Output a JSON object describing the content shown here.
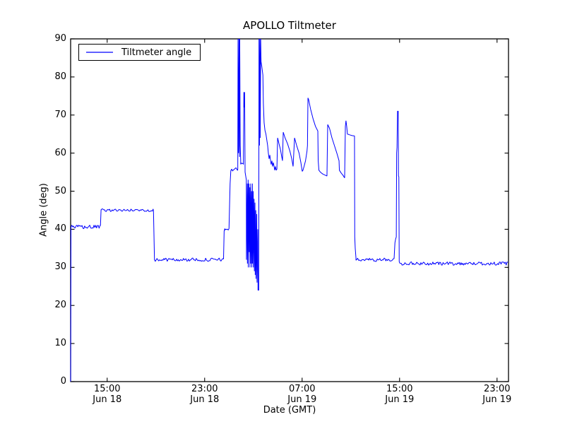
{
  "figure": {
    "background": "#ffffff",
    "frame_color": "#000000"
  },
  "chart_data": {
    "type": "line",
    "title": "APOLLO Tiltmeter",
    "xlabel": "Date (GMT)",
    "ylabel": "Angle (deg)",
    "legend": {
      "position": "upper left",
      "entries": [
        "Tiltmeter angle"
      ]
    },
    "grid": false,
    "x_axis": {
      "label": "Date (GMT)",
      "range_hours": [
        0,
        35.94
      ],
      "origin_tick": "Jun 18 12:00",
      "ticks": [
        {
          "h": 3,
          "line1": "15:00",
          "line2": "Jun 18"
        },
        {
          "h": 11,
          "line1": "23:00",
          "line2": "Jun 18"
        },
        {
          "h": 19,
          "line1": "07:00",
          "line2": "Jun 19"
        },
        {
          "h": 27,
          "line1": "15:00",
          "line2": "Jun 19"
        },
        {
          "h": 35,
          "line1": "23:00",
          "line2": "Jun 19"
        }
      ]
    },
    "y_axis": {
      "label": "Angle (deg)",
      "range": [
        0,
        90
      ],
      "ticks": [
        0,
        10,
        20,
        30,
        40,
        50,
        60,
        70,
        80,
        90
      ]
    },
    "series": [
      {
        "name": "Tiltmeter angle",
        "color": "#0000ff",
        "units": "deg",
        "x_units": "hours since Jun 18 12:00 GMT",
        "segments": [
          {
            "pts": [
              [
                0,
                0
              ],
              [
                0.03,
                40.5
              ]
            ]
          },
          {
            "noise": {
              "t0": 0.03,
              "t1": 2.45,
              "level": 40.6,
              "amp": 0.5
            }
          },
          {
            "pts": [
              [
                2.45,
                41
              ],
              [
                2.5,
                45.2
              ]
            ]
          },
          {
            "noise": {
              "t0": 2.5,
              "t1": 6.8,
              "level": 45,
              "amp": 0.35
            }
          },
          {
            "pts": [
              [
                6.8,
                44.8
              ],
              [
                6.88,
                32.3
              ]
            ]
          },
          {
            "noise": {
              "t0": 6.88,
              "t1": 12.55,
              "level": 32,
              "amp": 0.45
            }
          },
          {
            "pts": [
              [
                12.55,
                32.2
              ],
              [
                12.6,
                39.5
              ],
              [
                12.66,
                40.2
              ]
            ]
          },
          {
            "noise": {
              "t0": 12.66,
              "t1": 13.0,
              "level": 40,
              "amp": 0.35
            }
          },
          {
            "pts": [
              [
                13.0,
                40.2
              ],
              [
                13.05,
                47
              ],
              [
                13.09,
                52
              ],
              [
                13.15,
                55.5
              ]
            ]
          },
          {
            "noise": {
              "t0": 13.15,
              "t1": 13.72,
              "level": 55.6,
              "amp": 0.6
            }
          },
          {
            "pts": [
              [
                13.72,
                56
              ],
              [
                13.74,
                90
              ],
              [
                13.78,
                60
              ],
              [
                13.82,
                90
              ],
              [
                13.86,
                59
              ],
              [
                13.88,
                90
              ],
              [
                13.92,
                62
              ],
              [
                13.96,
                58
              ]
            ]
          },
          {
            "noise": {
              "t0": 13.96,
              "t1": 14.18,
              "level": 57.5,
              "amp": 0.5
            }
          },
          {
            "pts": [
              [
                14.18,
                57
              ],
              [
                14.22,
                76
              ],
              [
                14.25,
                72
              ],
              [
                14.28,
                76
              ],
              [
                14.32,
                55
              ]
            ]
          },
          {
            "pts": [
              [
                14.42,
                53
              ],
              [
                14.43,
                32
              ],
              [
                14.5,
                52
              ],
              [
                14.51,
                31
              ],
              [
                14.57,
                53
              ],
              [
                14.58,
                30
              ],
              [
                14.64,
                52
              ],
              [
                14.66,
                34
              ],
              [
                14.71,
                51
              ],
              [
                14.72,
                30
              ],
              [
                14.78,
                52
              ],
              [
                14.79,
                31
              ],
              [
                14.85,
                50
              ],
              [
                14.86,
                30
              ],
              [
                14.92,
                52
              ],
              [
                14.93,
                31
              ],
              [
                14.99,
                50
              ],
              [
                15.0,
                30
              ],
              [
                15.06,
                48
              ],
              [
                15.08,
                29
              ],
              [
                15.13,
                47
              ],
              [
                15.15,
                28
              ],
              [
                15.2,
                45
              ],
              [
                15.22,
                27
              ],
              [
                15.28,
                44
              ],
              [
                15.3,
                26
              ],
              [
                15.36,
                40
              ],
              [
                15.38,
                24
              ]
            ]
          },
          {
            "pts": [
              [
                15.44,
                24
              ],
              [
                15.46,
                90
              ],
              [
                15.5,
                62
              ],
              [
                15.53,
                90
              ],
              [
                15.56,
                64
              ],
              [
                15.6,
                90
              ],
              [
                15.63,
                84
              ],
              [
                15.68,
                83
              ],
              [
                15.72,
                82
              ],
              [
                15.78,
                80.5
              ],
              [
                15.82,
                73
              ],
              [
                15.88,
                68
              ],
              [
                15.95,
                66
              ],
              [
                16.03,
                65
              ]
            ]
          },
          {
            "pts": [
              [
                16.1,
                63.5
              ],
              [
                16.17,
                62
              ],
              [
                16.23,
                60
              ],
              [
                16.29,
                58.5
              ],
              [
                16.35,
                59.5
              ],
              [
                16.41,
                58
              ],
              [
                16.46,
                57
              ],
              [
                16.52,
                58
              ],
              [
                16.58,
                56.5
              ],
              [
                16.64,
                57.5
              ],
              [
                16.7,
                56.5
              ],
              [
                16.75,
                55.5
              ],
              [
                16.81,
                56.5
              ],
              [
                16.87,
                55.5
              ],
              [
                16.93,
                55.8
              ]
            ]
          },
          {
            "pts": [
              [
                16.99,
                64
              ],
              [
                17.1,
                62.5
              ],
              [
                17.22,
                61
              ],
              [
                17.33,
                59
              ],
              [
                17.39,
                58
              ]
            ]
          },
          {
            "pts": [
              [
                17.45,
                65.5
              ],
              [
                17.6,
                64
              ],
              [
                17.8,
                62.5
              ],
              [
                18.0,
                60.5
              ],
              [
                18.15,
                58.5
              ],
              [
                18.26,
                56.5
              ]
            ]
          },
          {
            "pts": [
              [
                18.38,
                64
              ],
              [
                18.55,
                62
              ],
              [
                18.75,
                60
              ],
              [
                18.9,
                57.5
              ],
              [
                19.01,
                55.2
              ]
            ]
          },
          {
            "pts": [
              [
                19.07,
                55.5
              ],
              [
                19.16,
                56.5
              ],
              [
                19.28,
                58
              ],
              [
                19.4,
                60.5
              ],
              [
                19.44,
                62
              ],
              [
                19.48,
                74.5
              ]
            ]
          },
          {
            "pts": [
              [
                19.54,
                74
              ],
              [
                19.7,
                71.5
              ],
              [
                19.9,
                69
              ],
              [
                20.1,
                67
              ],
              [
                20.29,
                65.8
              ],
              [
                20.32,
                58
              ],
              [
                20.38,
                55.5
              ],
              [
                20.5,
                55
              ],
              [
                20.7,
                54.5
              ],
              [
                20.9,
                54.2
              ],
              [
                21.04,
                54
              ]
            ]
          },
          {
            "pts": [
              [
                21.1,
                67.5
              ],
              [
                21.25,
                66.5
              ],
              [
                21.45,
                64
              ],
              [
                21.65,
                62
              ],
              [
                21.85,
                60
              ],
              [
                22.03,
                58
              ]
            ]
          },
          {
            "pts": [
              [
                22.06,
                55.5
              ],
              [
                22.2,
                54.8
              ],
              [
                22.35,
                54.2
              ],
              [
                22.49,
                53.5
              ]
            ]
          },
          {
            "pts": [
              [
                22.55,
                67
              ],
              [
                22.6,
                68.5
              ],
              [
                22.66,
                67
              ],
              [
                22.72,
                65
              ],
              [
                22.9,
                64.8
              ],
              [
                23.1,
                64.6
              ],
              [
                23.3,
                64.5
              ]
            ]
          },
          {
            "pts": [
              [
                23.32,
                38
              ],
              [
                23.36,
                35
              ],
              [
                23.42,
                32.5
              ]
            ]
          },
          {
            "noise": {
              "t0": 23.42,
              "t1": 26.55,
              "level": 32,
              "amp": 0.45
            }
          },
          {
            "pts": [
              [
                26.55,
                32.3
              ],
              [
                26.62,
                36.5
              ],
              [
                26.68,
                37.5
              ],
              [
                26.73,
                38
              ],
              [
                26.76,
                60
              ],
              [
                26.79,
                61.5
              ],
              [
                26.83,
                71
              ],
              [
                26.89,
                71
              ],
              [
                26.91,
                54
              ],
              [
                26.94,
                53.8
              ],
              [
                26.97,
                31.5
              ]
            ]
          },
          {
            "noise": {
              "t0": 27.0,
              "t1": 35.94,
              "level": 31,
              "amp": 0.45
            }
          }
        ]
      }
    ]
  }
}
